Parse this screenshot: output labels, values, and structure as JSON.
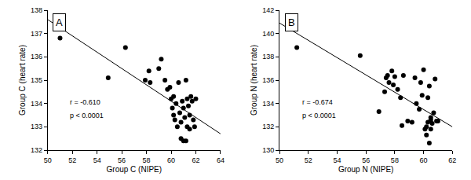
{
  "chart_data": [
    {
      "type": "scatter",
      "label": "A",
      "x_label": "Group C (NIPE)",
      "y_label": "Group C (heart rate)",
      "x": [
        51.0,
        54.9,
        56.3,
        57.9,
        58.2,
        58.3,
        59.0,
        59.2,
        59.5,
        59.7,
        59.9,
        60.0,
        60.1,
        60.2,
        60.2,
        60.3,
        60.4,
        60.5,
        60.6,
        60.7,
        60.8,
        60.8,
        60.9,
        61.0,
        61.0,
        61.1,
        61.2,
        61.2,
        61.3,
        61.3,
        61.4,
        61.5,
        61.5,
        61.6,
        61.7,
        61.8,
        61.9,
        62.0
      ],
      "values": [
        136.8,
        135.1,
        136.4,
        135.0,
        135.4,
        134.9,
        135.5,
        135.9,
        135.0,
        134.6,
        134.7,
        134.2,
        133.8,
        133.5,
        134.3,
        133.3,
        134.0,
        133.0,
        134.9,
        133.6,
        133.2,
        132.5,
        134.1,
        133.8,
        132.4,
        133.4,
        135.0,
        132.4,
        134.2,
        133.0,
        133.9,
        133.5,
        132.9,
        134.3,
        134.1,
        133.3,
        133.0,
        134.2
      ],
      "color": "#000000",
      "marker": "circle",
      "fit_line": {
        "x": [
          50,
          64
        ],
        "values": [
          137.6,
          132.7
        ],
        "color": "#000000",
        "line_style": "solid"
      },
      "annotations": [
        "r = -0.610",
        "p < 0.0001"
      ],
      "xlim": [
        50,
        64
      ],
      "xticks": [
        50,
        52,
        54,
        56,
        58,
        60,
        62,
        64
      ],
      "ylim": [
        132,
        138
      ],
      "yticks": [
        132,
        133,
        134,
        135,
        136,
        137,
        138
      ],
      "grid": false
    },
    {
      "type": "scatter",
      "label": "B",
      "x_label": "Group N (NIPE)",
      "y_label": "Group N (heart rate)",
      "x": [
        51.2,
        55.6,
        56.9,
        57.3,
        57.4,
        57.5,
        57.6,
        57.8,
        57.9,
        58.0,
        58.2,
        58.4,
        58.5,
        58.6,
        58.9,
        59.2,
        59.4,
        59.5,
        59.7,
        59.8,
        59.9,
        60.0,
        60.1,
        60.2,
        60.2,
        60.3,
        60.3,
        60.4,
        60.4,
        60.5,
        60.5,
        60.5,
        60.6,
        60.7,
        60.8,
        60.9,
        61.0
      ],
      "values": [
        138.8,
        138.1,
        133.3,
        135.0,
        136.2,
        136.4,
        135.8,
        136.8,
        135.6,
        136.3,
        135.2,
        134.5,
        132.1,
        136.4,
        132.5,
        132.4,
        136.2,
        134.0,
        133.5,
        135.8,
        134.7,
        136.9,
        131.8,
        132.0,
        131.3,
        132.4,
        134.5,
        130.6,
        135.5,
        132.8,
        132.6,
        131.8,
        132.3,
        133.2,
        136.1,
        132.5,
        132.5
      ],
      "color": "#000000",
      "marker": "circle",
      "fit_line": {
        "x": [
          50,
          62
        ],
        "values": [
          140.9,
          132.0
        ],
        "color": "#000000",
        "line_style": "solid"
      },
      "annotations": [
        "r = -0.674",
        "p < 0.0001"
      ],
      "xlim": [
        50,
        62
      ],
      "xticks": [
        50,
        52,
        54,
        56,
        58,
        60,
        62
      ],
      "ylim": [
        130,
        142
      ],
      "yticks": [
        130,
        132,
        134,
        136,
        138,
        140,
        142
      ],
      "grid": false
    }
  ]
}
